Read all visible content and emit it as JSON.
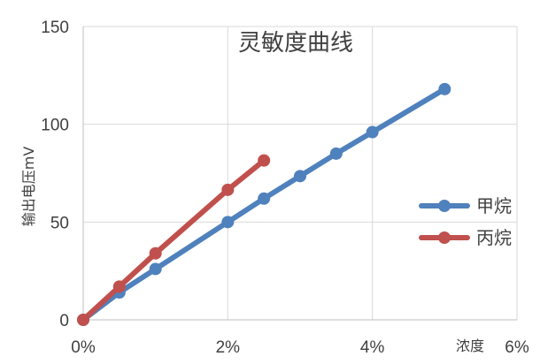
{
  "chart_data": {
    "type": "line",
    "title": "灵敏度曲线",
    "xlabel": "浓度",
    "ylabel": "输出电压mV",
    "xlim": [
      0,
      6
    ],
    "ylim": [
      0,
      150
    ],
    "x_ticks": [
      "0%",
      "2%",
      "4%",
      "6%"
    ],
    "y_ticks": [
      "0",
      "50",
      "100",
      "150"
    ],
    "grid": true,
    "legend_position": "right",
    "series": [
      {
        "name": "甲烷",
        "color": "#4F81BD",
        "x": [
          0,
          0.5,
          1,
          2,
          2.5,
          3,
          3.5,
          4,
          5
        ],
        "y": [
          0,
          14,
          26,
          50,
          62,
          73.5,
          85,
          96,
          118
        ]
      },
      {
        "name": "丙烷",
        "color": "#C0504D",
        "x": [
          0,
          0.5,
          1,
          2,
          2.5
        ],
        "y": [
          0,
          17,
          34,
          66.5,
          81.5
        ]
      }
    ]
  }
}
